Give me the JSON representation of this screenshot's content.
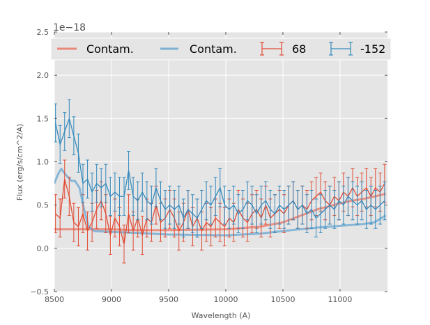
{
  "chart_data": {
    "type": "line",
    "title": "",
    "xlabel": "Wavelength (A)",
    "ylabel": "Flux (erg/s/cm^2/A)",
    "y_offset_text": "1e−18",
    "xlim": [
      8500,
      11415
    ],
    "ylim": [
      -0.5,
      2.5
    ],
    "xticks": [
      8500,
      9000,
      9500,
      10000,
      10500,
      11000
    ],
    "xtick_labels": [
      "8500",
      "9000",
      "9500",
      "10000",
      "10500",
      "11000"
    ],
    "yticks": [
      -0.5,
      0.0,
      0.5,
      1.0,
      1.5,
      2.0,
      2.5
    ],
    "ytick_labels": [
      "−0.5",
      "0.0",
      "0.5",
      "1.0",
      "1.5",
      "2.0",
      "2.5"
    ],
    "grid": true,
    "legend_position": "top",
    "legend": [
      "Contam.",
      "Contam.",
      "68",
      "-152"
    ],
    "colors": {
      "red": "#e24a33",
      "blue": "#348abd",
      "red_contam": "#e8877a",
      "blue_contam": "#7cb0d4",
      "axes_bg": "#e5e5e5"
    },
    "contam_x": [
      8500,
      8530,
      8560,
      8600,
      8650,
      8680,
      8720,
      8760,
      8800,
      8850,
      9000,
      9200,
      9500,
      10000,
      10300,
      10500,
      10800,
      11000,
      11100,
      11200,
      11300,
      11400
    ],
    "series": [
      {
        "name": "Contam.",
        "kind": "contam",
        "color": "red_contam",
        "values": [
          0.22,
          0.22,
          0.22,
          0.22,
          0.22,
          0.22,
          0.22,
          0.22,
          0.22,
          0.22,
          0.22,
          0.21,
          0.21,
          0.22,
          0.25,
          0.3,
          0.45,
          0.52,
          0.55,
          0.57,
          0.6,
          0.63
        ]
      },
      {
        "name": "Contam.",
        "kind": "contam",
        "color": "blue_contam",
        "values": [
          0.75,
          0.85,
          0.92,
          0.85,
          0.78,
          0.78,
          0.7,
          0.45,
          0.25,
          0.2,
          0.19,
          0.18,
          0.16,
          0.15,
          0.17,
          0.2,
          0.24,
          0.26,
          0.27,
          0.28,
          0.3,
          0.38
        ]
      },
      {
        "name": "68",
        "kind": "errorbar",
        "color": "red",
        "err": 0.22,
        "values": [
          0.4,
          0.35,
          0.8,
          0.6,
          0.3,
          0.25,
          0.4,
          0.2,
          0.3,
          0.45,
          0.55,
          0.4,
          0.15,
          0.35,
          0.25,
          0.05,
          0.4,
          0.2,
          0.35,
          0.15,
          0.35,
          0.3,
          0.5,
          0.3,
          0.35,
          0.45,
          0.35,
          0.2,
          0.3,
          0.45,
          0.25,
          0.35,
          0.2,
          0.3,
          0.25,
          0.35,
          0.3,
          0.25,
          0.35,
          0.3,
          0.45,
          0.35,
          0.3,
          0.4,
          0.45,
          0.35,
          0.5,
          0.35,
          0.4,
          0.45,
          0.4,
          0.5,
          0.55,
          0.45,
          0.5,
          0.45,
          0.55,
          0.6,
          0.65,
          0.55,
          0.5,
          0.6,
          0.55,
          0.65,
          0.6,
          0.7,
          0.6,
          0.65,
          0.7,
          0.6,
          0.7,
          0.65,
          0.75
        ]
      },
      {
        "name": "-152",
        "kind": "errorbar",
        "color": "blue",
        "err": 0.22,
        "values": [
          1.45,
          1.2,
          1.35,
          1.5,
          1.3,
          1.1,
          0.75,
          0.8,
          0.65,
          0.75,
          0.7,
          0.75,
          0.6,
          0.65,
          0.6,
          0.6,
          0.9,
          0.6,
          0.55,
          0.65,
          0.55,
          0.5,
          0.7,
          0.55,
          0.45,
          0.5,
          0.45,
          0.5,
          0.35,
          0.45,
          0.4,
          0.35,
          0.45,
          0.55,
          0.5,
          0.6,
          0.7,
          0.5,
          0.45,
          0.5,
          0.4,
          0.45,
          0.55,
          0.5,
          0.4,
          0.5,
          0.55,
          0.45,
          0.4,
          0.5,
          0.45,
          0.5,
          0.55,
          0.45,
          0.5,
          0.4,
          0.45,
          0.35,
          0.4,
          0.45,
          0.5,
          0.45,
          0.55,
          0.5,
          0.6,
          0.55,
          0.5,
          0.55,
          0.45,
          0.5,
          0.45,
          0.5,
          0.55
        ]
      }
    ],
    "data_x_start": 8510,
    "data_x_step": 40
  }
}
